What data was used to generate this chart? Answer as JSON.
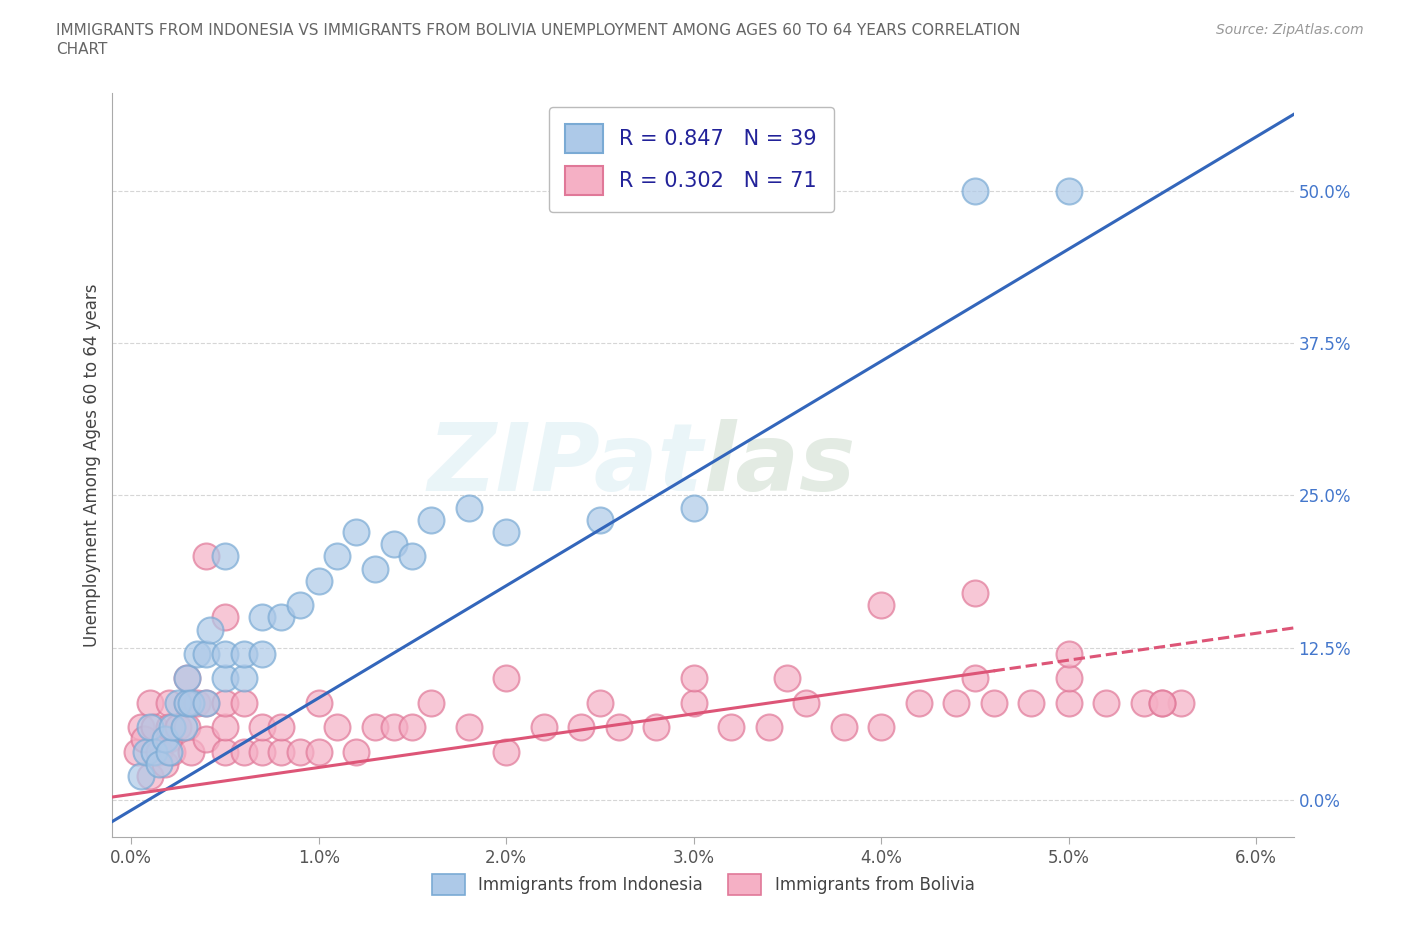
{
  "title_line1": "IMMIGRANTS FROM INDONESIA VS IMMIGRANTS FROM BOLIVIA UNEMPLOYMENT AMONG AGES 60 TO 64 YEARS CORRELATION",
  "title_line2": "CHART",
  "source": "Source: ZipAtlas.com",
  "ylabel": "Unemployment Among Ages 60 to 64 years",
  "xlim": [
    -0.001,
    0.062
  ],
  "ylim": [
    -0.03,
    0.58
  ],
  "yticks": [
    0.0,
    0.125,
    0.25,
    0.375,
    0.5
  ],
  "ytick_labels": [
    "0.0%",
    "12.5%",
    "25.0%",
    "37.5%",
    "50.0%"
  ],
  "xticks": [
    0.0,
    0.01,
    0.02,
    0.03,
    0.04,
    0.05,
    0.06
  ],
  "xtick_labels": [
    "0.0%",
    "1.0%",
    "2.0%",
    "3.0%",
    "4.0%",
    "5.0%",
    "6.0%"
  ],
  "indonesia_color": "#adc9e8",
  "bolivia_color": "#f5b0c5",
  "indonesia_edge": "#7aaad4",
  "bolivia_edge": "#e07898",
  "trendline_indonesia_color": "#3366bb",
  "trendline_bolivia_color": "#dd5577",
  "trendline_indo_slope": 9.2,
  "trendline_indo_intercept": -0.008,
  "trendline_boliv_slope": 2.2,
  "trendline_boliv_intercept": 0.005,
  "R_indonesia": 0.847,
  "N_indonesia": 39,
  "R_bolivia": 0.302,
  "N_bolivia": 71,
  "watermark": "ZIPatlas",
  "legend_label_indonesia": "Immigrants from Indonesia",
  "legend_label_bolivia": "Immigrants from Bolivia",
  "indonesia_x": [
    0.0005,
    0.0008,
    0.001,
    0.0012,
    0.0015,
    0.0018,
    0.002,
    0.0022,
    0.0025,
    0.0028,
    0.003,
    0.003,
    0.0032,
    0.0035,
    0.004,
    0.004,
    0.0042,
    0.005,
    0.005,
    0.005,
    0.006,
    0.006,
    0.007,
    0.007,
    0.008,
    0.009,
    0.01,
    0.011,
    0.012,
    0.013,
    0.014,
    0.015,
    0.016,
    0.018,
    0.02,
    0.025,
    0.03,
    0.045,
    0.05
  ],
  "indonesia_y": [
    0.02,
    0.04,
    0.06,
    0.04,
    0.03,
    0.05,
    0.04,
    0.06,
    0.08,
    0.06,
    0.08,
    0.1,
    0.08,
    0.12,
    0.08,
    0.12,
    0.14,
    0.1,
    0.12,
    0.2,
    0.1,
    0.12,
    0.12,
    0.15,
    0.15,
    0.16,
    0.18,
    0.2,
    0.22,
    0.19,
    0.21,
    0.2,
    0.23,
    0.24,
    0.22,
    0.23,
    0.24,
    0.5,
    0.5
  ],
  "bolivia_x": [
    0.0003,
    0.0005,
    0.0007,
    0.001,
    0.001,
    0.0012,
    0.0015,
    0.0018,
    0.002,
    0.002,
    0.002,
    0.0022,
    0.0025,
    0.003,
    0.003,
    0.003,
    0.0032,
    0.0035,
    0.004,
    0.004,
    0.004,
    0.005,
    0.005,
    0.005,
    0.005,
    0.006,
    0.006,
    0.007,
    0.007,
    0.008,
    0.008,
    0.009,
    0.01,
    0.01,
    0.011,
    0.012,
    0.013,
    0.014,
    0.015,
    0.016,
    0.018,
    0.02,
    0.022,
    0.024,
    0.026,
    0.028,
    0.03,
    0.032,
    0.034,
    0.036,
    0.038,
    0.04,
    0.042,
    0.044,
    0.046,
    0.048,
    0.05,
    0.052,
    0.054,
    0.056,
    0.02,
    0.025,
    0.03,
    0.035,
    0.04,
    0.045,
    0.05,
    0.055,
    0.045,
    0.05,
    0.055
  ],
  "bolivia_y": [
    0.04,
    0.06,
    0.05,
    0.08,
    0.02,
    0.06,
    0.04,
    0.03,
    0.05,
    0.08,
    0.06,
    0.04,
    0.06,
    0.06,
    0.08,
    0.1,
    0.04,
    0.08,
    0.05,
    0.08,
    0.2,
    0.04,
    0.06,
    0.08,
    0.15,
    0.04,
    0.08,
    0.04,
    0.06,
    0.04,
    0.06,
    0.04,
    0.04,
    0.08,
    0.06,
    0.04,
    0.06,
    0.06,
    0.06,
    0.08,
    0.06,
    0.04,
    0.06,
    0.06,
    0.06,
    0.06,
    0.08,
    0.06,
    0.06,
    0.08,
    0.06,
    0.06,
    0.08,
    0.08,
    0.08,
    0.08,
    0.08,
    0.08,
    0.08,
    0.08,
    0.1,
    0.08,
    0.1,
    0.1,
    0.16,
    0.1,
    0.1,
    0.08,
    0.17,
    0.12,
    0.08
  ]
}
